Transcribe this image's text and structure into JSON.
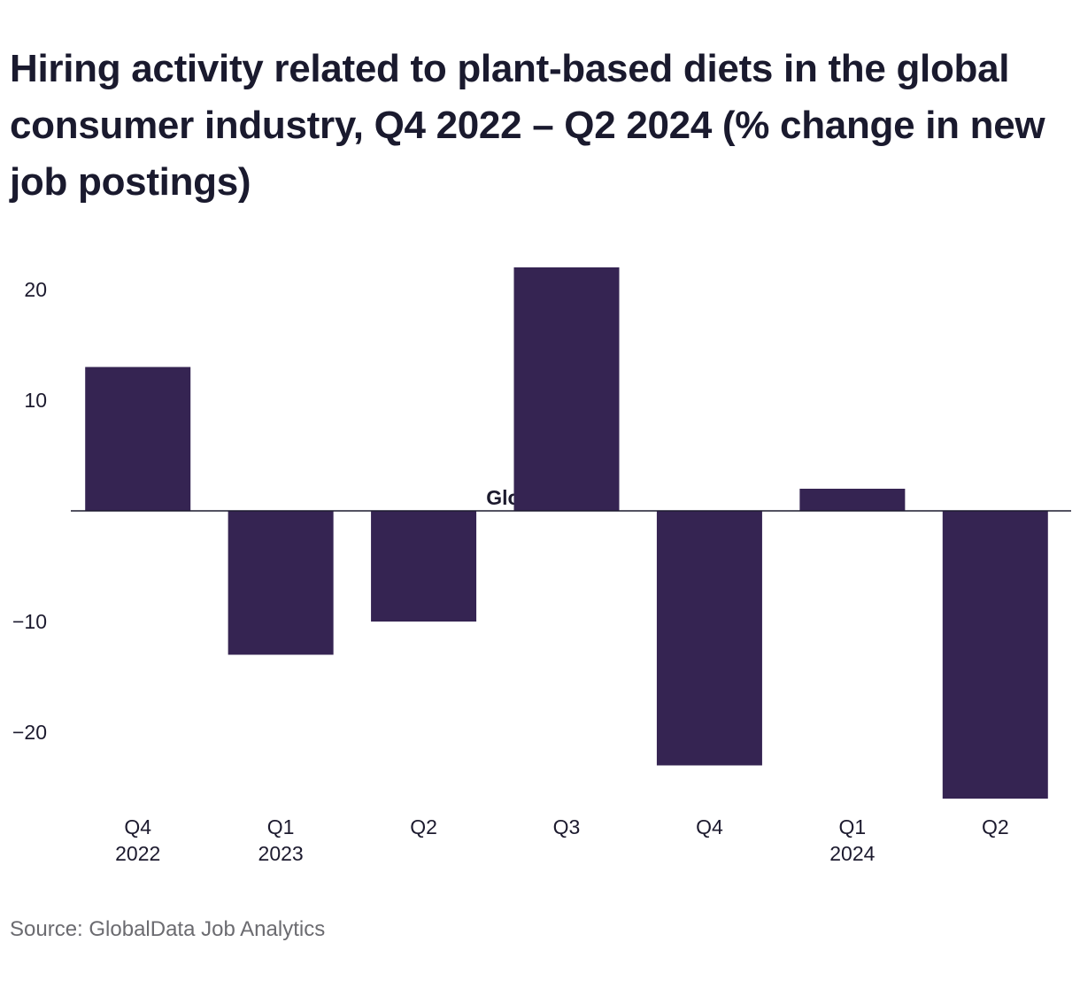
{
  "chart_data": {
    "type": "bar",
    "title": "Hiring activity related to plant-based diets in the global consumer industry, Q4 2022 – Q2 2024 (% change in new job postings)",
    "categories": [
      {
        "label": "Q4",
        "year": "2022"
      },
      {
        "label": "Q1",
        "year": "2023"
      },
      {
        "label": "Q2",
        "year": ""
      },
      {
        "label": "Q3",
        "year": ""
      },
      {
        "label": "Q4",
        "year": ""
      },
      {
        "label": "Q1",
        "year": "2024"
      },
      {
        "label": "Q2",
        "year": ""
      }
    ],
    "values": [
      13,
      -13,
      -10,
      22,
      -23,
      2,
      -26
    ],
    "ylim": [
      -26,
      22
    ],
    "yticks": [
      {
        "value": 20,
        "label": "20"
      },
      {
        "value": 10,
        "label": "10"
      },
      {
        "value": -10,
        "label": "−10"
      },
      {
        "value": -20,
        "label": "−20"
      }
    ],
    "bar_color": "#352452",
    "grid": false,
    "legend": "none",
    "watermark": "GlobalData"
  },
  "source": "Source: GlobalData Job Analytics"
}
